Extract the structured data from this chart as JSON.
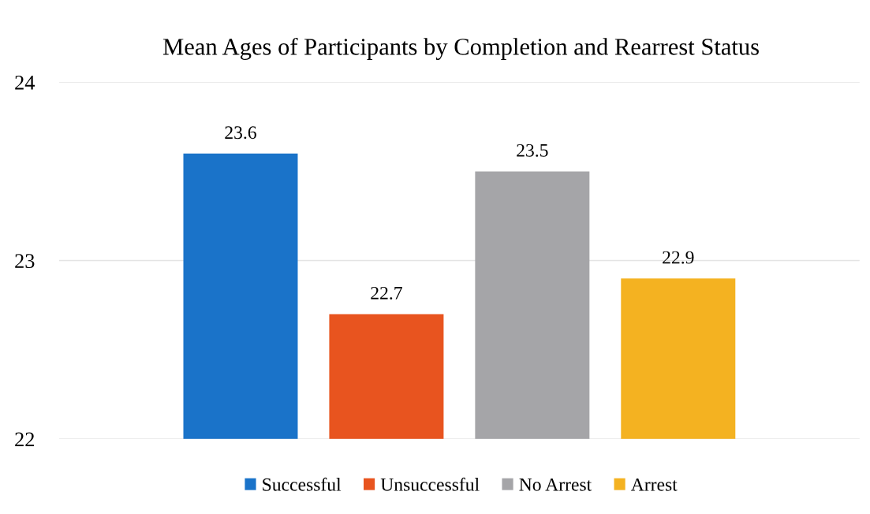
{
  "chart_data": {
    "type": "bar",
    "title": "Mean Ages of Participants by Completion and Rearrest Status",
    "categories": [
      null
    ],
    "series": [
      {
        "name": "Successful",
        "color": "#1a73c9",
        "values": [
          23.6
        ]
      },
      {
        "name": "Unsuccessful",
        "color": "#e8541f",
        "values": [
          22.7
        ]
      },
      {
        "name": "No Arrest",
        "color": "#a5a5a8",
        "values": [
          23.5
        ]
      },
      {
        "name": "Arrest",
        "color": "#f4b221",
        "values": [
          22.9
        ]
      }
    ],
    "ylim": [
      22,
      24
    ],
    "yticks": [
      22,
      23,
      24
    ],
    "grid": "y",
    "legend": "bottom",
    "data_labels": true
  }
}
